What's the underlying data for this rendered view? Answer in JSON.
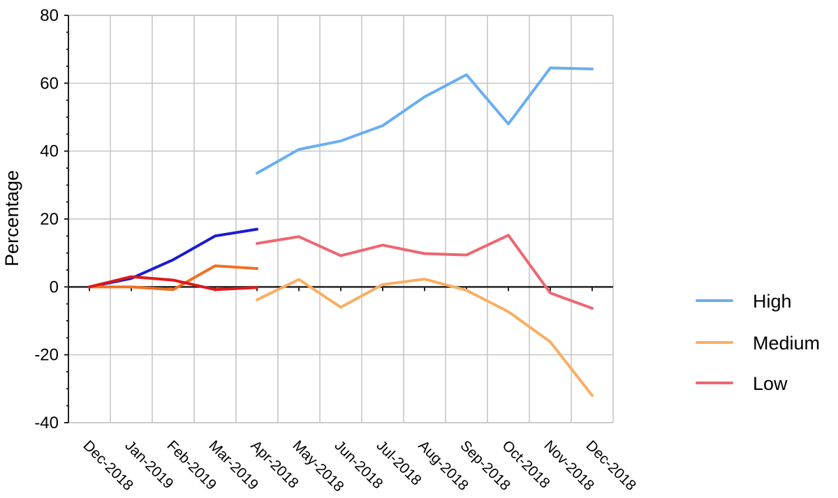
{
  "chart_data": {
    "type": "line",
    "ylabel": "Percentage",
    "ylim": [
      -40,
      80
    ],
    "yticks": [
      80,
      60,
      40,
      20,
      0,
      -20,
      -40
    ],
    "grid": true,
    "categories": [
      "Dec-2018",
      "Jan-2019",
      "Feb-2019",
      "Mar-2019",
      "Apr-2018",
      "May-2018",
      "Jun-2018",
      "Jul-2018",
      "Aug-2018",
      "Sep-2018",
      "Oct-2018",
      "Nov-2018",
      "Dec-2018"
    ],
    "segments": [
      {
        "group": "first",
        "series": [
          {
            "color": "#1a1ad6",
            "values": [
              0,
              2.5,
              8,
              15,
              17
            ]
          },
          {
            "color": "#f07020",
            "values": [
              0,
              0,
              -0.8,
              6.2,
              5.4
            ]
          },
          {
            "color": "#e01818",
            "values": [
              0,
              3,
              2,
              -0.8,
              -0.2
            ]
          }
        ]
      },
      {
        "group": "second",
        "series": [
          {
            "name": "High",
            "color": "#6aaef0",
            "values": [
              33.5,
              40.5,
              43,
              47.5,
              56,
              62.5,
              48,
              64.5,
              64.2
            ]
          },
          {
            "name": "Medium",
            "color": "#f9ae62",
            "values": [
              -3.8,
              2.2,
              -6,
              0.7,
              2.3,
              -1,
              -7.3,
              -16.2,
              -32
            ]
          },
          {
            "name": "Low",
            "color": "#ee6672",
            "values": [
              12.8,
              14.8,
              9.2,
              12.3,
              9.8,
              9.4,
              15.2,
              -1.8,
              -6.3
            ]
          }
        ],
        "start_index": 4
      }
    ],
    "legend": {
      "placement": "right",
      "entries": [
        {
          "label": "High",
          "color": "#6aaef0"
        },
        {
          "label": "Medium",
          "color": "#f9ae62"
        },
        {
          "label": "Low",
          "color": "#ee6672"
        }
      ]
    }
  }
}
